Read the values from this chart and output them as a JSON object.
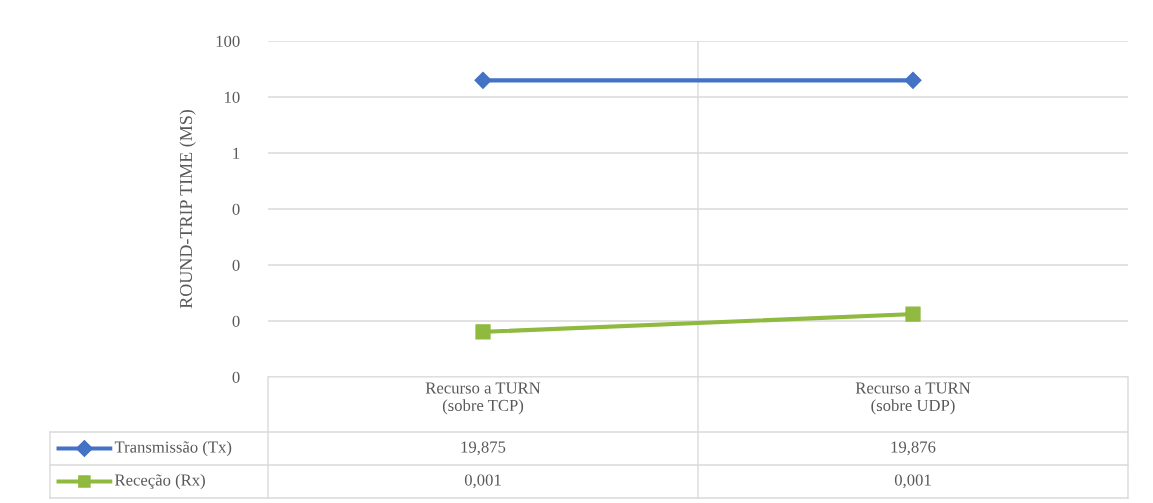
{
  "chart_data": {
    "type": "line",
    "ylabel": "ROUND-TRIP TIME (MS)",
    "categories": [
      "Recurso a TURN\n(sobre TCP)",
      "Recurso a TURN\n(sobre UDP)"
    ],
    "series": [
      {
        "name": "Transmissão (Tx)",
        "color": "#4472c4",
        "marker": "diamond",
        "values": [
          19.875,
          19.876
        ],
        "value_labels": [
          "19,875",
          "19,876"
        ]
      },
      {
        "name": "Receção (Rx)",
        "color": "#8fb93f",
        "marker": "square",
        "values": [
          0.00064,
          0.00133
        ],
        "value_labels": [
          "0,001",
          "0,001"
        ]
      }
    ],
    "log": "y",
    "ylim": [
      0.0001,
      100
    ],
    "yticks": [
      {
        "value": 0.0001,
        "label": "0"
      },
      {
        "value": 0.001,
        "label": "0"
      },
      {
        "value": 0.01,
        "label": "0"
      },
      {
        "value": 0.1,
        "label": "0"
      },
      1,
      10,
      100
    ],
    "grid": "y",
    "line_style": "solid",
    "legend": "bottom left"
  }
}
